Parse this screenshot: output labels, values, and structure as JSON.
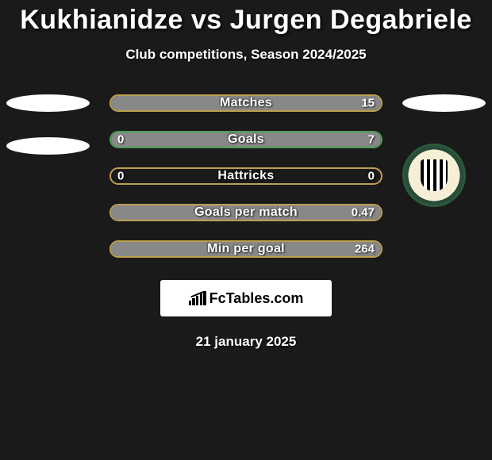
{
  "title": "Kukhianidze vs Jurgen Degabriele",
  "subtitle": "Club competitions, Season 2024/2025",
  "date": "21 january 2025",
  "watermark": {
    "text": "FcTables.com"
  },
  "colors": {
    "background": "#1a1a1a",
    "text": "#ffffff",
    "left_fill": "#888888",
    "right_fill": "#888888"
  },
  "bars": [
    {
      "label": "Matches",
      "left_value": "",
      "right_value": "15",
      "left_pct": 0,
      "right_pct": 100,
      "border_color": "#bca050",
      "fill_color": "#888888"
    },
    {
      "label": "Goals",
      "left_value": "0",
      "right_value": "7",
      "left_pct": 0,
      "right_pct": 100,
      "border_color": "#4aa050",
      "fill_color": "#888888"
    },
    {
      "label": "Hattricks",
      "left_value": "0",
      "right_value": "0",
      "left_pct": 0,
      "right_pct": 0,
      "border_color": "#bca050",
      "fill_color": "#888888"
    },
    {
      "label": "Goals per match",
      "left_value": "",
      "right_value": "0.47",
      "left_pct": 0,
      "right_pct": 100,
      "border_color": "#bca050",
      "fill_color": "#888888"
    },
    {
      "label": "Min per goal",
      "left_value": "",
      "right_value": "264",
      "left_pct": 0,
      "right_pct": 100,
      "border_color": "#bca050",
      "fill_color": "#888888"
    }
  ],
  "left_logo": {
    "type": "ellipses",
    "count": 2
  },
  "right_logo": {
    "type": "crest-ellipse"
  }
}
